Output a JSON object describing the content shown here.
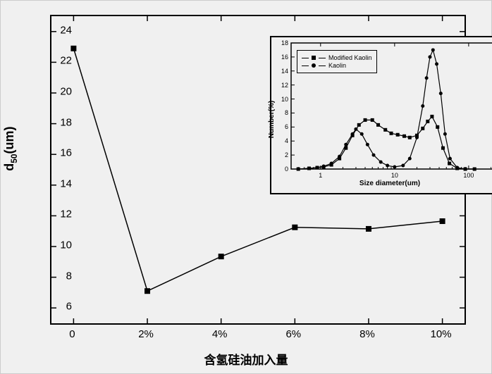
{
  "main_chart": {
    "type": "line",
    "xlabel": "含氢硅油加入量",
    "ylabel_html": "d<sub>50</sub>(um)",
    "xticks": [
      "0",
      "2%",
      "4%",
      "6%",
      "8%",
      "10%"
    ],
    "xtick_positions": [
      0,
      1,
      2,
      3,
      4,
      5
    ],
    "yticks": [
      6,
      8,
      10,
      12,
      14,
      16,
      18,
      20,
      22,
      24
    ],
    "ylim": [
      5,
      25
    ],
    "xlim": [
      -0.3,
      5.3
    ],
    "line_color": "#000000",
    "marker": "square",
    "marker_color": "#000000",
    "marker_size": 8,
    "line_width": 1.5,
    "background_color": "#f0f0f0",
    "data": [
      {
        "x": 0,
        "y": 22.9
      },
      {
        "x": 1,
        "y": 7.1
      },
      {
        "x": 2,
        "y": 9.35
      },
      {
        "x": 3,
        "y": 11.25
      },
      {
        "x": 4,
        "y": 11.15
      },
      {
        "x": 5,
        "y": 11.65
      }
    ]
  },
  "inset_chart": {
    "type": "line",
    "xlabel": "Size diameter(um)",
    "ylabel": "Number(%)",
    "xscale": "log",
    "xticks": [
      1,
      10,
      100
    ],
    "xtick_labels": [
      "1",
      "10",
      "100"
    ],
    "yticks": [
      0,
      2,
      4,
      6,
      8,
      10,
      12,
      14,
      16,
      18
    ],
    "ylim": [
      0,
      18
    ],
    "xlim": [
      0.4,
      300
    ],
    "legend": {
      "position": "upper-left",
      "entries": [
        {
          "label": "Modified Kaolin",
          "marker": "square",
          "color": "#000000"
        },
        {
          "label": "Kaolin",
          "marker": "circle",
          "color": "#000000"
        }
      ]
    },
    "series": [
      {
        "name": "Modified Kaolin",
        "marker": "square",
        "color": "#000000",
        "data": [
          {
            "x": 0.5,
            "y": 0
          },
          {
            "x": 0.7,
            "y": 0.1
          },
          {
            "x": 0.9,
            "y": 0.2
          },
          {
            "x": 1.1,
            "y": 0.3
          },
          {
            "x": 1.4,
            "y": 0.6
          },
          {
            "x": 1.8,
            "y": 1.5
          },
          {
            "x": 2.2,
            "y": 3.0
          },
          {
            "x": 2.7,
            "y": 4.8
          },
          {
            "x": 3.3,
            "y": 6.3
          },
          {
            "x": 4.0,
            "y": 7.0
          },
          {
            "x": 5.0,
            "y": 7.0
          },
          {
            "x": 6.0,
            "y": 6.3
          },
          {
            "x": 7.5,
            "y": 5.6
          },
          {
            "x": 9.0,
            "y": 5.1
          },
          {
            "x": 11.0,
            "y": 4.9
          },
          {
            "x": 13.5,
            "y": 4.7
          },
          {
            "x": 16.0,
            "y": 4.5
          },
          {
            "x": 20.0,
            "y": 4.8
          },
          {
            "x": 24.0,
            "y": 5.8
          },
          {
            "x": 28.0,
            "y": 6.8
          },
          {
            "x": 32.0,
            "y": 7.5
          },
          {
            "x": 38.0,
            "y": 6.0
          },
          {
            "x": 45.0,
            "y": 3.0
          },
          {
            "x": 55.0,
            "y": 0.8
          },
          {
            "x": 70.0,
            "y": 0.1
          },
          {
            "x": 90.0,
            "y": 0
          },
          {
            "x": 120,
            "y": 0
          }
        ]
      },
      {
        "name": "Kaolin",
        "marker": "circle",
        "color": "#000000",
        "data": [
          {
            "x": 0.5,
            "y": 0
          },
          {
            "x": 0.7,
            "y": 0.1
          },
          {
            "x": 0.9,
            "y": 0.2
          },
          {
            "x": 1.1,
            "y": 0.4
          },
          {
            "x": 1.4,
            "y": 0.8
          },
          {
            "x": 1.8,
            "y": 1.8
          },
          {
            "x": 2.2,
            "y": 3.5
          },
          {
            "x": 2.7,
            "y": 5.0
          },
          {
            "x": 3.0,
            "y": 5.7
          },
          {
            "x": 3.6,
            "y": 5.0
          },
          {
            "x": 4.3,
            "y": 3.5
          },
          {
            "x": 5.2,
            "y": 2.0
          },
          {
            "x": 6.5,
            "y": 1.0
          },
          {
            "x": 8.0,
            "y": 0.5
          },
          {
            "x": 10.0,
            "y": 0.3
          },
          {
            "x": 13.0,
            "y": 0.5
          },
          {
            "x": 16.0,
            "y": 1.5
          },
          {
            "x": 20.0,
            "y": 4.5
          },
          {
            "x": 24.0,
            "y": 9.0
          },
          {
            "x": 27.0,
            "y": 13.0
          },
          {
            "x": 30.0,
            "y": 16.0
          },
          {
            "x": 33.0,
            "y": 17.0
          },
          {
            "x": 37.0,
            "y": 15.0
          },
          {
            "x": 42.0,
            "y": 10.8
          },
          {
            "x": 48.0,
            "y": 5.0
          },
          {
            "x": 56.0,
            "y": 1.5
          },
          {
            "x": 70.0,
            "y": 0.2
          },
          {
            "x": 90.0,
            "y": 0
          },
          {
            "x": 120,
            "y": 0
          }
        ]
      }
    ]
  }
}
